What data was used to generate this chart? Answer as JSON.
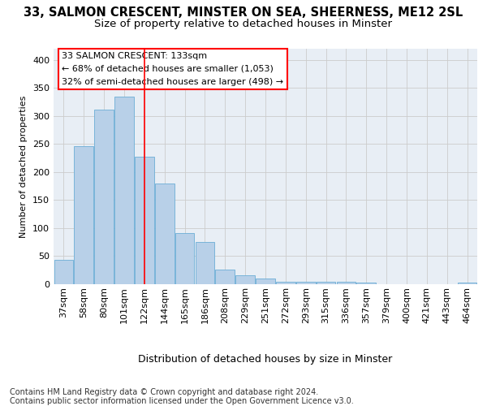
{
  "title_line1": "33, SALMON CRESCENT, MINSTER ON SEA, SHEERNESS, ME12 2SL",
  "title_line2": "Size of property relative to detached houses in Minster",
  "xlabel": "Distribution of detached houses by size in Minster",
  "ylabel": "Number of detached properties",
  "footer_line1": "Contains HM Land Registry data © Crown copyright and database right 2024.",
  "footer_line2": "Contains public sector information licensed under the Open Government Licence v3.0.",
  "categories": [
    "37sqm",
    "58sqm",
    "80sqm",
    "101sqm",
    "122sqm",
    "144sqm",
    "165sqm",
    "186sqm",
    "208sqm",
    "229sqm",
    "251sqm",
    "272sqm",
    "293sqm",
    "315sqm",
    "336sqm",
    "357sqm",
    "379sqm",
    "400sqm",
    "421sqm",
    "443sqm",
    "464sqm"
  ],
  "values": [
    44,
    246,
    312,
    335,
    228,
    180,
    91,
    75,
    26,
    16,
    10,
    4,
    5,
    5,
    4,
    3,
    0,
    0,
    0,
    0,
    3
  ],
  "bar_color": "#b8d0e8",
  "bar_edge_color": "#6baed6",
  "red_line_index": 4,
  "annotation_box_text_line1": "33 SALMON CRESCENT: 133sqm",
  "annotation_box_text_line2": "← 68% of detached houses are smaller (1,053)",
  "annotation_box_text_line3": "32% of semi-detached houses are larger (498) →",
  "annotation_box_edge_color": "red",
  "annotation_box_bg": "white",
  "ylim": [
    0,
    420
  ],
  "yticks": [
    0,
    50,
    100,
    150,
    200,
    250,
    300,
    350,
    400
  ],
  "grid_color": "#cccccc",
  "fig_bg_color": "#ffffff",
  "plot_bg_color": "#e8eef5",
  "title_fontsize": 10.5,
  "subtitle_fontsize": 9.5,
  "xlabel_fontsize": 9,
  "ylabel_fontsize": 8,
  "tick_fontsize": 8,
  "annotation_fontsize": 8,
  "footer_fontsize": 7
}
